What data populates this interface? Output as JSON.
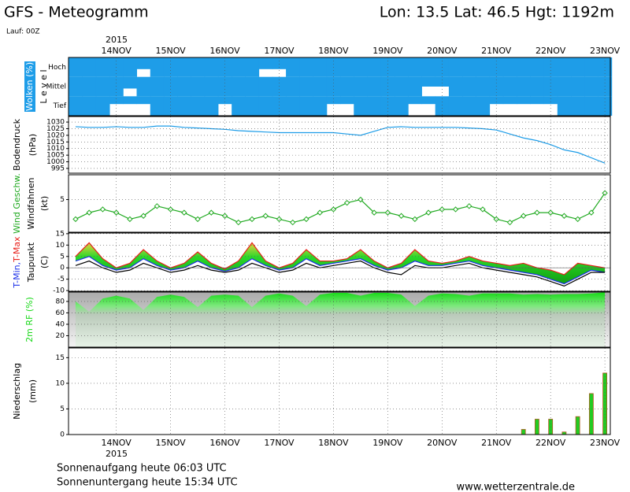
{
  "header": {
    "title": "GFS - Meteogramm",
    "location": "Lon: 13.5 Lat: 46.5 Hgt: 1192m",
    "run": "Lauf: 00Z",
    "year": "2015"
  },
  "footer": {
    "sunrise": "Sonnenaufgang heute 06:03 UTC",
    "sunset": "Sonnenuntergang heute 15:34 UTC",
    "site": "www.wetterzentrale.de"
  },
  "chart_data": [
    {
      "type": "heatmap",
      "ylabel": "Wolken (%)",
      "ylabel2": "L e v e l",
      "xlim": [
        13.12,
        23.1
      ],
      "xticks": [
        {
          "value": 14,
          "label": "14NOV"
        },
        {
          "value": 15,
          "label": "15NOV"
        },
        {
          "value": 16,
          "label": "16NOV"
        },
        {
          "value": 17,
          "label": "17NOV"
        },
        {
          "value": 18,
          "label": "18NOV"
        },
        {
          "value": 19,
          "label": "19NOV"
        },
        {
          "value": 20,
          "label": "20NOV"
        },
        {
          "value": 21,
          "label": "21NOV"
        },
        {
          "value": 22,
          "label": "22NOV"
        },
        {
          "value": 23,
          "label": "23NOV"
        }
      ],
      "x": [
        13.25,
        13.5,
        13.75,
        14,
        14.25,
        14.5,
        14.75,
        15,
        15.25,
        15.5,
        15.75,
        16,
        16.25,
        16.5,
        16.75,
        17,
        17.25,
        17.5,
        17.75,
        18,
        18.25,
        18.5,
        18.75,
        19,
        19.25,
        19.5,
        19.75,
        20,
        20.25,
        20.5,
        20.75,
        21,
        21.25,
        21.5,
        21.75,
        22,
        22.25,
        22.5,
        22.75,
        23
      ],
      "series": [
        {
          "name": "Hoch",
          "color": "#1e9de8",
          "values": [
            100,
            100,
            100,
            100,
            100,
            60,
            100,
            100,
            100,
            100,
            100,
            100,
            100,
            100,
            60,
            60,
            100,
            100,
            100,
            100,
            100,
            100,
            100,
            100,
            100,
            100,
            100,
            100,
            100,
            100,
            100,
            100,
            100,
            100,
            100,
            100,
            100,
            100,
            100,
            100
          ]
        },
        {
          "name": "Mittel",
          "color": "#1e9de8",
          "values": [
            100,
            100,
            100,
            100,
            60,
            100,
            100,
            100,
            100,
            100,
            100,
            100,
            100,
            100,
            100,
            100,
            100,
            100,
            100,
            100,
            100,
            100,
            100,
            100,
            100,
            100,
            50,
            50,
            100,
            100,
            100,
            100,
            100,
            100,
            100,
            100,
            100,
            100,
            100,
            100
          ]
        },
        {
          "name": "Tief",
          "color": "#1e9de8",
          "values": [
            100,
            100,
            100,
            40,
            40,
            40,
            100,
            100,
            100,
            100,
            100,
            40,
            100,
            100,
            100,
            100,
            100,
            100,
            100,
            40,
            40,
            100,
            100,
            100,
            100,
            40,
            40,
            100,
            100,
            100,
            100,
            40,
            40,
            40,
            40,
            40,
            100,
            100,
            100,
            100
          ]
        }
      ]
    },
    {
      "type": "line",
      "ylabel": "Bodendruck",
      "ylabel2": "(hPa)",
      "xlim": [
        13.12,
        23.1
      ],
      "ylim": [
        991.4,
        1034.2
      ],
      "yticks": [
        995,
        1000,
        1005,
        1010,
        1015,
        1020,
        1025,
        1030
      ],
      "x": [
        13.25,
        13.5,
        13.75,
        14,
        14.25,
        14.5,
        14.75,
        15,
        15.25,
        15.5,
        15.75,
        16,
        16.25,
        16.5,
        16.75,
        17,
        17.25,
        17.5,
        17.75,
        18,
        18.25,
        18.5,
        18.75,
        19,
        19.25,
        19.5,
        19.75,
        20,
        20.25,
        20.5,
        20.75,
        21,
        21.25,
        21.5,
        21.75,
        22,
        22.25,
        22.5,
        22.75,
        23
      ],
      "series": [
        {
          "name": "Bodendruck",
          "color": "#1e9de8",
          "values": [
            1026.5,
            1026,
            1026,
            1026.5,
            1026,
            1026,
            1027,
            1027,
            1026,
            1025.5,
            1025,
            1024.5,
            1023.5,
            1023,
            1022.5,
            1022,
            1022,
            1022,
            1022,
            1022,
            1021,
            1020,
            1023,
            1026,
            1026.5,
            1026,
            1026,
            1026,
            1026,
            1025.5,
            1025,
            1024,
            1021,
            1018,
            1016,
            1013,
            1009,
            1007,
            1003,
            999
          ]
        }
      ]
    },
    {
      "type": "line",
      "ylabel": "Wind Geschw.",
      "ylabel2": "Windfahnen",
      "ylabel3": "(kt)",
      "xlim": [
        13.12,
        23.1
      ],
      "ylim": [
        0,
        8.8
      ],
      "yticks": [
        5
      ],
      "x": [
        13.25,
        13.5,
        13.75,
        14,
        14.25,
        14.5,
        14.75,
        15,
        15.25,
        15.5,
        15.75,
        16,
        16.25,
        16.5,
        16.75,
        17,
        17.25,
        17.5,
        17.75,
        18,
        18.25,
        18.5,
        18.75,
        19,
        19.25,
        19.5,
        19.75,
        20,
        20.25,
        20.5,
        20.75,
        21,
        21.25,
        21.5,
        21.75,
        22,
        22.25,
        22.5,
        22.75,
        23
      ],
      "series": [
        {
          "name": "Wind Geschw.",
          "color": "#22aa22",
          "values": [
            2,
            3,
            3.5,
            3,
            2,
            2.5,
            4,
            3.5,
            3,
            2,
            3,
            2.5,
            1.5,
            2,
            2.5,
            2,
            1.5,
            2,
            3,
            3.5,
            4.5,
            5,
            3,
            3,
            2.5,
            2,
            3,
            3.5,
            3.5,
            4,
            3.5,
            2,
            1.5,
            2.5,
            3,
            3,
            2.5,
            2,
            3,
            6
          ]
        }
      ]
    },
    {
      "type": "area",
      "ylabel_min": "T-Min,",
      "ylabel_max": "T-Max",
      "ylabel2": "Taupunkt",
      "ylabel3": "(C)",
      "xlim": [
        13.12,
        23.1
      ],
      "ylim": [
        -10.3,
        15.3
      ],
      "yticks": [
        -10,
        -5,
        0,
        5,
        10,
        15
      ],
      "x": [
        13.25,
        13.5,
        13.75,
        14,
        14.25,
        14.5,
        14.75,
        15,
        15.25,
        15.5,
        15.75,
        16,
        16.25,
        16.5,
        16.75,
        17,
        17.25,
        17.5,
        17.75,
        18,
        18.25,
        18.5,
        18.75,
        19,
        19.25,
        19.5,
        19.75,
        20,
        20.25,
        20.5,
        20.75,
        21,
        21.25,
        21.5,
        21.75,
        22,
        22.25,
        22.5,
        22.75,
        23
      ],
      "series": [
        {
          "name": "T-Max",
          "color": "#e8201a",
          "values": [
            5,
            11,
            4,
            0,
            2,
            8,
            3,
            0,
            2,
            7,
            2,
            -0.5,
            3,
            11,
            3,
            0,
            2,
            8,
            3,
            3,
            4,
            8,
            3,
            0,
            2,
            8,
            3,
            2,
            3,
            5,
            3,
            2,
            1,
            2,
            0,
            -1,
            -3,
            2,
            1,
            0
          ]
        },
        {
          "name": "T-Min",
          "color": "#1a2ee8",
          "values": [
            3,
            5,
            1,
            -1,
            0,
            4,
            1,
            -1,
            0,
            3,
            0,
            -1.5,
            0,
            4,
            1,
            -1,
            0,
            4,
            1,
            2,
            3,
            4,
            1,
            -1,
            0,
            3,
            1,
            1,
            2,
            3,
            1,
            0,
            -1,
            -2,
            -3,
            -5,
            -7,
            -4,
            -1,
            -2
          ]
        },
        {
          "name": "Taupunkt",
          "color": "#000000",
          "values": [
            1,
            3,
            0,
            -2,
            -1,
            2,
            0,
            -2,
            -1,
            1,
            -1,
            -2,
            -1,
            2,
            0,
            -2,
            -1,
            2,
            0,
            1,
            2,
            3,
            0,
            -2,
            -3,
            1,
            0,
            0,
            1,
            2,
            0,
            -1,
            -2,
            -3,
            -4,
            -6,
            -8,
            -5,
            -2,
            -2
          ]
        }
      ]
    },
    {
      "type": "area",
      "ylabel": "2m RF (%)",
      "xlim": [
        13.12,
        23.1
      ],
      "ylim": [
        0,
        96.4
      ],
      "yticks": [
        20,
        40,
        60,
        80
      ],
      "x": [
        13.25,
        13.5,
        13.75,
        14,
        14.25,
        14.5,
        14.75,
        15,
        15.25,
        15.5,
        15.75,
        16,
        16.25,
        16.5,
        16.75,
        17,
        17.25,
        17.5,
        17.75,
        18,
        18.25,
        18.5,
        18.75,
        19,
        19.25,
        19.5,
        19.75,
        20,
        20.25,
        20.5,
        20.75,
        21,
        21.25,
        21.5,
        21.75,
        22,
        22.25,
        22.5,
        22.75,
        23
      ],
      "series": [
        {
          "name": "2m RF (%)",
          "color": "#18d818",
          "values": [
            80,
            62,
            85,
            90,
            85,
            65,
            88,
            92,
            88,
            70,
            90,
            92,
            90,
            70,
            90,
            94,
            90,
            72,
            92,
            95,
            95,
            90,
            95,
            95,
            92,
            72,
            90,
            94,
            93,
            90,
            94,
            94,
            94,
            92,
            93,
            92,
            93,
            93,
            94,
            96
          ]
        }
      ]
    },
    {
      "type": "bar",
      "ylabel": "Niederschlag",
      "ylabel2": "(mm)",
      "xlim": [
        13.12,
        23.1
      ],
      "ylim": [
        0,
        16.9
      ],
      "yticks": [
        0,
        5,
        10,
        15
      ],
      "x": [
        13.25,
        13.5,
        13.75,
        14,
        14.25,
        14.5,
        14.75,
        15,
        15.25,
        15.5,
        15.75,
        16,
        16.25,
        16.5,
        16.75,
        17,
        17.25,
        17.5,
        17.75,
        18,
        18.25,
        18.5,
        18.75,
        19,
        19.25,
        19.5,
        19.75,
        20,
        20.25,
        20.5,
        20.75,
        21,
        21.25,
        21.5,
        21.75,
        22,
        22.25,
        22.5,
        22.75,
        23
      ],
      "series": [
        {
          "name": "Niederschlag",
          "color": "#22cc22",
          "values": [
            0,
            0,
            0,
            0,
            0,
            0,
            0,
            0,
            0,
            0,
            0,
            0,
            0,
            0,
            0,
            0,
            0,
            0,
            0,
            0,
            0,
            0,
            0,
            0,
            0,
            0,
            0,
            0,
            0,
            0,
            0,
            0,
            0,
            1,
            3,
            3,
            0.5,
            3.5,
            8,
            12
          ]
        }
      ]
    }
  ]
}
